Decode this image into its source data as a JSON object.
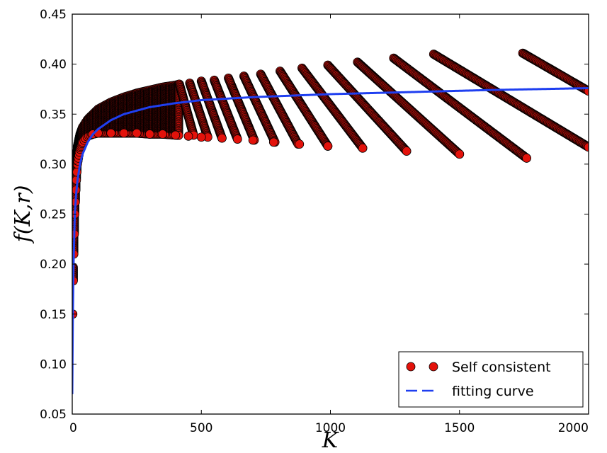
{
  "chart_data": {
    "type": "scatter",
    "title": "",
    "xlabel": "K",
    "ylabel": "f(K,r)",
    "xlim": [
      0,
      2000
    ],
    "ylim": [
      0.05,
      0.45
    ],
    "xticks": [
      0,
      500,
      1000,
      1500,
      2000
    ],
    "xtick_labels": [
      "0",
      "500",
      "1000",
      "1500",
      "2000"
    ],
    "yticks": [
      0.05,
      0.1,
      0.15,
      0.2,
      0.25,
      0.3,
      0.35,
      0.4,
      0.45
    ],
    "ytick_labels": [
      "0.05",
      "0.10",
      "0.15",
      "0.20",
      "0.25",
      "0.30",
      "0.35",
      "0.40",
      "0.45"
    ],
    "grid": false,
    "legend_position": "bottom-right",
    "series": [
      {
        "name": "Self consistent",
        "kind": "markers",
        "marker_color": "#e3120b",
        "edge_color": "#000000",
        "segments": [
          {
            "x": [
              415,
              470
            ],
            "y": [
              0.38,
              0.329
            ]
          },
          {
            "x": [
              455,
              525
            ],
            "y": [
              0.381,
              0.327
            ]
          },
          {
            "x": [
              500,
              580
            ],
            "y": [
              0.383,
              0.326
            ]
          },
          {
            "x": [
              550,
              640
            ],
            "y": [
              0.384,
              0.325
            ]
          },
          {
            "x": [
              605,
              705
            ],
            "y": [
              0.386,
              0.324
            ]
          },
          {
            "x": [
              665,
              785
            ],
            "y": [
              0.388,
              0.322
            ]
          },
          {
            "x": [
              730,
              875
            ],
            "y": [
              0.39,
              0.32
            ]
          },
          {
            "x": [
              805,
              990
            ],
            "y": [
              0.393,
              0.318
            ]
          },
          {
            "x": [
              890,
              1125
            ],
            "y": [
              0.396,
              0.316
            ]
          },
          {
            "x": [
              990,
              1295
            ],
            "y": [
              0.399,
              0.313
            ]
          },
          {
            "x": [
              1105,
              1500
            ],
            "y": [
              0.402,
              0.31
            ]
          },
          {
            "x": [
              1245,
              1760
            ],
            "y": [
              0.406,
              0.306
            ]
          },
          {
            "x": [
              1400,
              2000
            ],
            "y": [
              0.41,
              0.317
            ]
          },
          {
            "x": [
              1745,
              2000
            ],
            "y": [
              0.411,
              0.373
            ]
          }
        ],
        "lower_envelope": {
          "x": [
            2,
            5,
            10,
            15,
            20,
            30,
            40,
            60,
            80,
            100,
            150,
            200,
            250,
            300,
            350,
            400,
            450,
            500,
            580,
            700,
            780,
            880,
            990,
            1125,
            1295,
            1500,
            1760
          ],
          "y": [
            0.15,
            0.2,
            0.25,
            0.28,
            0.3,
            0.315,
            0.322,
            0.328,
            0.33,
            0.331,
            0.331,
            0.331,
            0.331,
            0.33,
            0.33,
            0.329,
            0.328,
            0.327,
            0.326,
            0.324,
            0.322,
            0.32,
            0.318,
            0.316,
            0.313,
            0.31,
            0.306
          ]
        },
        "upper_envelope": {
          "x": [
            2,
            5,
            10,
            15,
            20,
            30,
            40,
            60,
            80,
            100,
            150,
            200,
            250,
            300,
            350,
            400,
            415
          ],
          "y": [
            0.15,
            0.22,
            0.28,
            0.305,
            0.318,
            0.33,
            0.337,
            0.345,
            0.35,
            0.355,
            0.362,
            0.367,
            0.371,
            0.374,
            0.377,
            0.379,
            0.38
          ]
        }
      },
      {
        "name": "fitting curve",
        "kind": "dashed-line",
        "color": "#1f3ff0",
        "x": [
          0,
          2,
          5,
          10,
          15,
          20,
          30,
          40,
          60,
          80,
          100,
          150,
          200,
          300,
          400,
          500,
          700,
          1000,
          1300,
          1600,
          2000
        ],
        "y": [
          0.07,
          0.14,
          0.2,
          0.25,
          0.27,
          0.283,
          0.3,
          0.31,
          0.322,
          0.33,
          0.335,
          0.344,
          0.35,
          0.357,
          0.361,
          0.364,
          0.367,
          0.37,
          0.372,
          0.374,
          0.376
        ]
      }
    ]
  }
}
